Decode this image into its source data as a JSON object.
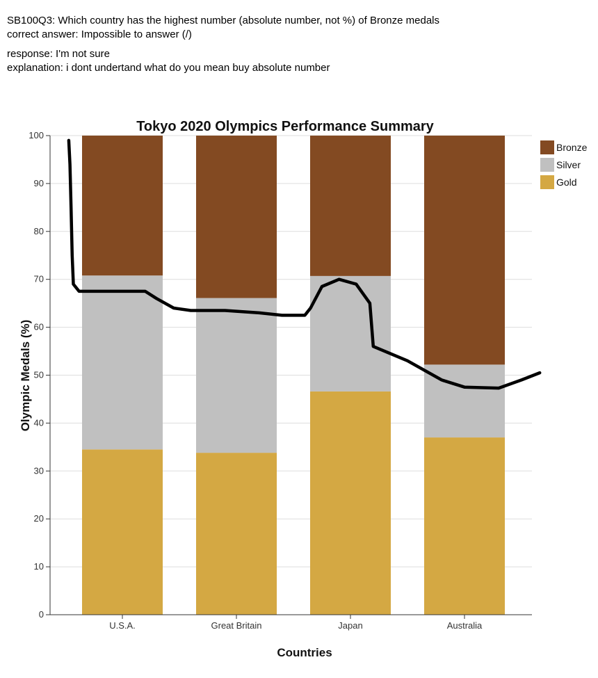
{
  "header": {
    "question": "SB100Q3: Which country has the highest number (absolute number, not %)  of Bronze medals",
    "correct_answer": "correct answer: Impossible to answer (/)",
    "response": "response: I'm not sure",
    "explanation": "explanation: i dont undertand  what do you mean buy absolute number"
  },
  "chart_data": {
    "type": "bar",
    "stacked": true,
    "title": "Tokyo 2020 Olympics Performance Summary",
    "xlabel": "Countries",
    "ylabel": "Olympic Medals (%)",
    "ylim": [
      0,
      100
    ],
    "yticks": [
      0,
      10,
      20,
      30,
      40,
      50,
      60,
      70,
      80,
      90,
      100
    ],
    "grid": true,
    "legend_position": "top-right",
    "categories": [
      "U.S.A.",
      "Great Britain",
      "Japan",
      "Australia"
    ],
    "series": [
      {
        "name": "Gold",
        "color": "#d4a843",
        "values": [
          34.5,
          33.8,
          46.6,
          37.0
        ]
      },
      {
        "name": "Silver",
        "color": "#c0c0c0",
        "values": [
          36.3,
          32.3,
          24.1,
          15.2
        ]
      },
      {
        "name": "Bronze",
        "color": "#834a22",
        "values": [
          29.2,
          33.9,
          29.3,
          47.8
        ]
      }
    ],
    "legend_order": [
      "Bronze",
      "Silver",
      "Gold"
    ],
    "annotation": {
      "type": "hand-drawn-line",
      "color": "#000000",
      "points": [
        [
          -0.47,
          99
        ],
        [
          -0.46,
          94
        ],
        [
          -0.45,
          85
        ],
        [
          -0.44,
          75
        ],
        [
          -0.43,
          69
        ],
        [
          -0.38,
          67.5
        ],
        [
          -0.2,
          67.5
        ],
        [
          0.2,
          67.5
        ],
        [
          0.3,
          66
        ],
        [
          0.45,
          64
        ],
        [
          0.6,
          63.5
        ],
        [
          0.9,
          63.5
        ],
        [
          1.2,
          63.0
        ],
        [
          1.4,
          62.5
        ],
        [
          1.6,
          62.5
        ],
        [
          1.65,
          64
        ],
        [
          1.75,
          68.5
        ],
        [
          1.9,
          70
        ],
        [
          2.05,
          69
        ],
        [
          2.17,
          65
        ],
        [
          2.2,
          56
        ],
        [
          2.5,
          53
        ],
        [
          2.8,
          49
        ],
        [
          3.0,
          47.5
        ],
        [
          3.3,
          47.3
        ],
        [
          3.5,
          49
        ],
        [
          3.66,
          50.5
        ]
      ]
    }
  }
}
